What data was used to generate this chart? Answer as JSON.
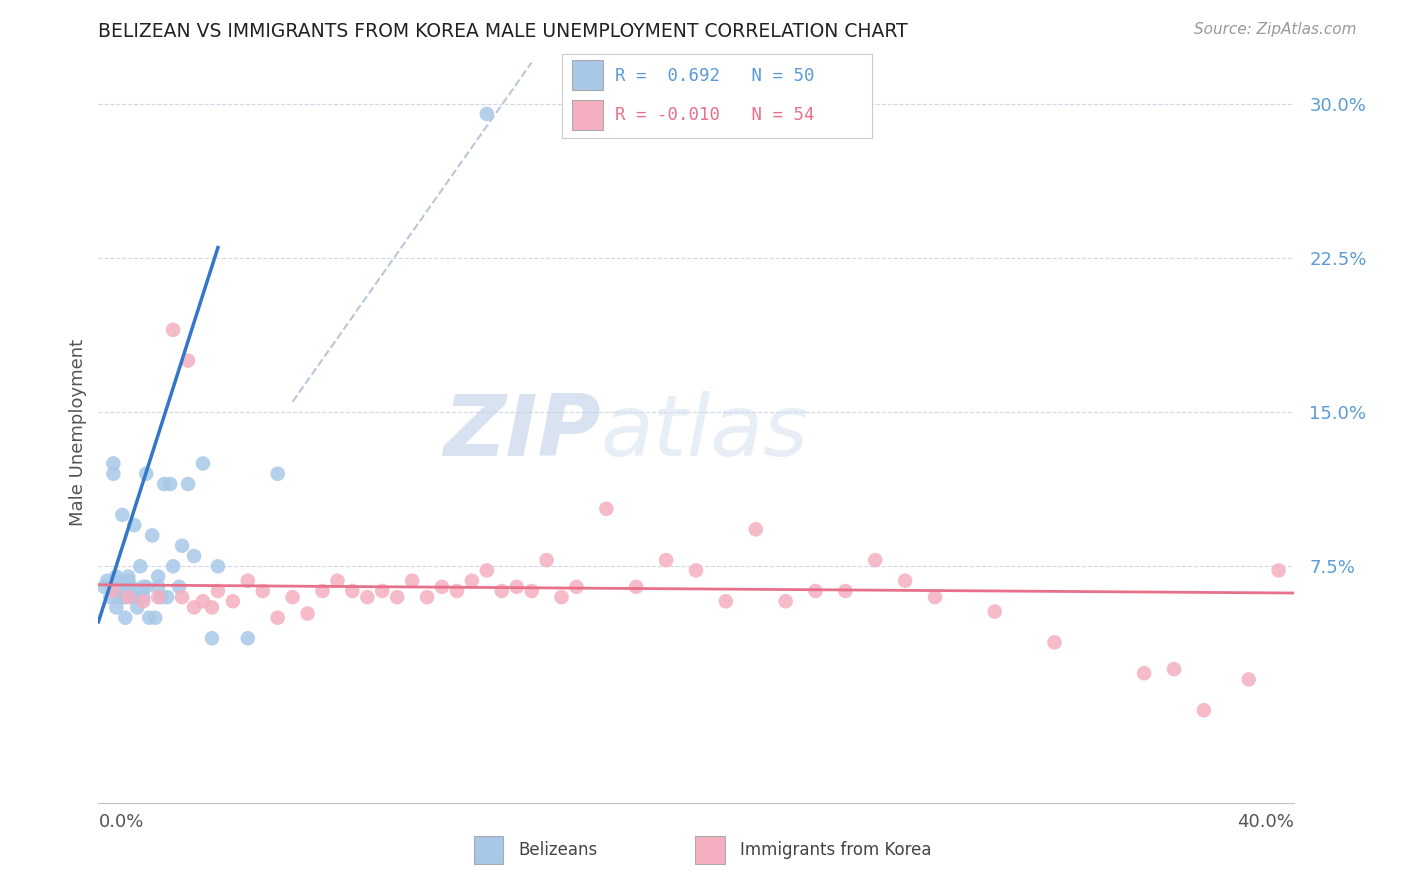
{
  "title": "BELIZEAN VS IMMIGRANTS FROM KOREA MALE UNEMPLOYMENT CORRELATION CHART",
  "source": "Source: ZipAtlas.com",
  "ylabel": "Male Unemployment",
  "xmin": 0.0,
  "xmax": 0.4,
  "ymin": -0.04,
  "ymax": 0.32,
  "yticks": [
    0.075,
    0.15,
    0.225,
    0.3
  ],
  "ytick_labels": [
    "7.5%",
    "15.0%",
    "22.5%",
    "30.0%"
  ],
  "legend_r1_color": "#5B9BD5",
  "legend_r2_color": "#E8708A",
  "blue_color": "#A8C8E8",
  "pink_color": "#F4B0C0",
  "blue_line_color": "#3378C8",
  "pink_line_color": "#E8708A",
  "diag_color": "#B8C8D8",
  "watermark_zip_color": "#C8D8EC",
  "watermark_atlas_color": "#C8D8EC",
  "blue_scatter_x": [
    0.002,
    0.003,
    0.004,
    0.005,
    0.005,
    0.005,
    0.006,
    0.006,
    0.006,
    0.007,
    0.007,
    0.008,
    0.008,
    0.008,
    0.009,
    0.009,
    0.009,
    0.01,
    0.01,
    0.01,
    0.011,
    0.011,
    0.012,
    0.012,
    0.013,
    0.014,
    0.015,
    0.015,
    0.016,
    0.016,
    0.017,
    0.018,
    0.019,
    0.02,
    0.02,
    0.021,
    0.022,
    0.023,
    0.024,
    0.025,
    0.027,
    0.028,
    0.03,
    0.032,
    0.035,
    0.038,
    0.04,
    0.05,
    0.06,
    0.13
  ],
  "blue_scatter_y": [
    0.065,
    0.068,
    0.06,
    0.125,
    0.12,
    0.065,
    0.068,
    0.07,
    0.055,
    0.06,
    0.063,
    0.06,
    0.063,
    0.1,
    0.06,
    0.065,
    0.05,
    0.068,
    0.07,
    0.065,
    0.06,
    0.065,
    0.06,
    0.095,
    0.055,
    0.075,
    0.065,
    0.06,
    0.065,
    0.12,
    0.05,
    0.09,
    0.05,
    0.065,
    0.07,
    0.06,
    0.115,
    0.06,
    0.115,
    0.075,
    0.065,
    0.085,
    0.115,
    0.08,
    0.125,
    0.04,
    0.075,
    0.04,
    0.12,
    0.295
  ],
  "pink_scatter_x": [
    0.005,
    0.01,
    0.015,
    0.02,
    0.025,
    0.028,
    0.03,
    0.032,
    0.035,
    0.038,
    0.04,
    0.045,
    0.05,
    0.055,
    0.06,
    0.065,
    0.07,
    0.075,
    0.08,
    0.085,
    0.09,
    0.095,
    0.1,
    0.105,
    0.11,
    0.115,
    0.12,
    0.125,
    0.13,
    0.135,
    0.14,
    0.145,
    0.15,
    0.155,
    0.16,
    0.17,
    0.18,
    0.19,
    0.2,
    0.21,
    0.22,
    0.23,
    0.24,
    0.25,
    0.26,
    0.27,
    0.28,
    0.3,
    0.32,
    0.35,
    0.36,
    0.37,
    0.385,
    0.395
  ],
  "pink_scatter_y": [
    0.063,
    0.06,
    0.058,
    0.06,
    0.19,
    0.06,
    0.175,
    0.055,
    0.058,
    0.055,
    0.063,
    0.058,
    0.068,
    0.063,
    0.05,
    0.06,
    0.052,
    0.063,
    0.068,
    0.063,
    0.06,
    0.063,
    0.06,
    0.068,
    0.06,
    0.065,
    0.063,
    0.068,
    0.073,
    0.063,
    0.065,
    0.063,
    0.078,
    0.06,
    0.065,
    0.103,
    0.065,
    0.078,
    0.073,
    0.058,
    0.093,
    0.058,
    0.063,
    0.063,
    0.078,
    0.068,
    0.06,
    0.053,
    0.038,
    0.023,
    0.025,
    0.005,
    0.02,
    0.073
  ],
  "blue_line_x": [
    0.0,
    0.04
  ],
  "blue_line_y": [
    0.048,
    0.23
  ],
  "pink_line_x": [
    0.0,
    0.4
  ],
  "pink_line_y": [
    0.066,
    0.062
  ],
  "diag_line_x": [
    0.065,
    0.145
  ],
  "diag_line_y": [
    0.155,
    0.32
  ]
}
